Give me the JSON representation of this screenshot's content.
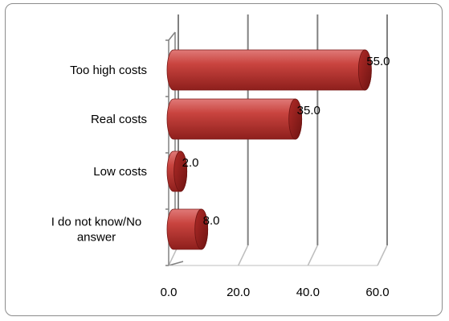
{
  "chart_data": {
    "type": "bar",
    "orientation": "horizontal",
    "style": "3d-cylinder",
    "categories": [
      "Too high costs",
      "Real costs",
      "Low costs",
      "I do not know/No answer"
    ],
    "values": [
      55.0,
      35.0,
      2.0,
      8.0
    ],
    "data_labels": [
      "55.0",
      "35.0",
      "2.0",
      "8.0"
    ],
    "title": "",
    "xlabel": "",
    "ylabel": "",
    "xlim": [
      0,
      60
    ],
    "x_ticks": [
      "0.0",
      "20.0",
      "40.0",
      "60.0"
    ],
    "grid": true,
    "legend": "none",
    "bar_color": "#c0392b"
  }
}
